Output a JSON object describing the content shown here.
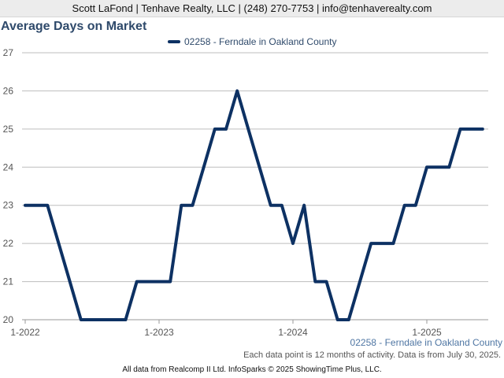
{
  "header": {
    "text": "Scott LaFond | Tenhave Realty, LLC | (248) 270-7753 | info@tenhaverealty.com"
  },
  "footer": {
    "series_label": "02258 - Ferndale in Oakland County",
    "note": "Each data point is 12 months of activity. Data is from July 30, 2025.",
    "credit": "All data from Realcomp II Ltd. InfoSparks © 2025 ShowingTime Plus, LLC."
  },
  "colors": {
    "line": "#0d3163",
    "grid": "#bdbdbd",
    "axis_text": "#555555"
  },
  "chart_data": {
    "type": "line",
    "title": "Average Days on Market",
    "xlabel": "",
    "ylabel": "",
    "ylim": [
      20,
      27
    ],
    "yticks": [
      20,
      21,
      22,
      23,
      24,
      25,
      26,
      27
    ],
    "xticks": [
      "1-2022",
      "1-2023",
      "1-2024",
      "1-2025"
    ],
    "legend_position": "top",
    "grid": true,
    "x": [
      "2022-01",
      "2022-02",
      "2022-03",
      "2022-04",
      "2022-05",
      "2022-06",
      "2022-07",
      "2022-08",
      "2022-09",
      "2022-10",
      "2022-11",
      "2022-12",
      "2023-01",
      "2023-02",
      "2023-03",
      "2023-04",
      "2023-05",
      "2023-06",
      "2023-07",
      "2023-08",
      "2023-09",
      "2023-10",
      "2023-11",
      "2023-12",
      "2024-01",
      "2024-02",
      "2024-03",
      "2024-04",
      "2024-05",
      "2024-06",
      "2024-07",
      "2024-08",
      "2024-09",
      "2024-10",
      "2024-11",
      "2024-12",
      "2025-01",
      "2025-02",
      "2025-03",
      "2025-04",
      "2025-05",
      "2025-06"
    ],
    "series": [
      {
        "name": "02258 - Ferndale in Oakland County",
        "values": [
          23,
          23,
          23,
          22,
          21,
          20,
          20,
          20,
          20,
          20,
          21,
          21,
          21,
          21,
          23,
          23,
          24,
          25,
          25,
          26,
          25,
          24,
          23,
          23,
          22,
          23,
          21,
          21,
          20,
          20,
          21,
          22,
          22,
          22,
          23,
          23,
          24,
          24,
          24,
          25,
          25,
          25
        ]
      }
    ]
  }
}
